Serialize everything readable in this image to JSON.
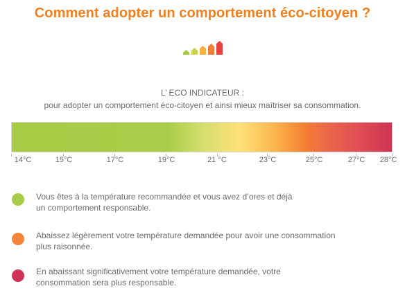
{
  "title": "Comment adopter un comportement éco-citoyen ?",
  "indicator": {
    "heading": "L’ ECO INDICATEUR :",
    "subheading": "pour adopter un comportement éco-citoyen et ainsi mieux maîtriser sa consommation."
  },
  "scale": {
    "labels": [
      "14°C",
      "15°C",
      "17°C",
      "19°C",
      "21 °C",
      "23°C",
      "25°C",
      "27°C",
      "28°C"
    ],
    "colors": {
      "green": "#a6cc46",
      "yellow": "#ffe27a",
      "orange": "#f47f33",
      "red": "#cf3355"
    }
  },
  "legend": {
    "green": {
      "color": "#a6cc46",
      "line1": "Vous êtes à la température recommandée et vous avez d’ores et déjà",
      "line2": "un comportement responsable."
    },
    "orange": {
      "color": "#f4853a",
      "line1": "Abaissez légèrement votre température demandée pour avoir une consommation",
      "line2": "plus raisonnée."
    },
    "red": {
      "color": "#cf3355",
      "line1": "En abaissant significativement votre température demandée, votre",
      "line2": "consommation sera plus responsable."
    }
  },
  "logo": {
    "icon": "house-bars-icon",
    "colors": [
      "#a6cc46",
      "#c9d34f",
      "#f5b142",
      "#f07f3a",
      "#e8423f"
    ]
  }
}
